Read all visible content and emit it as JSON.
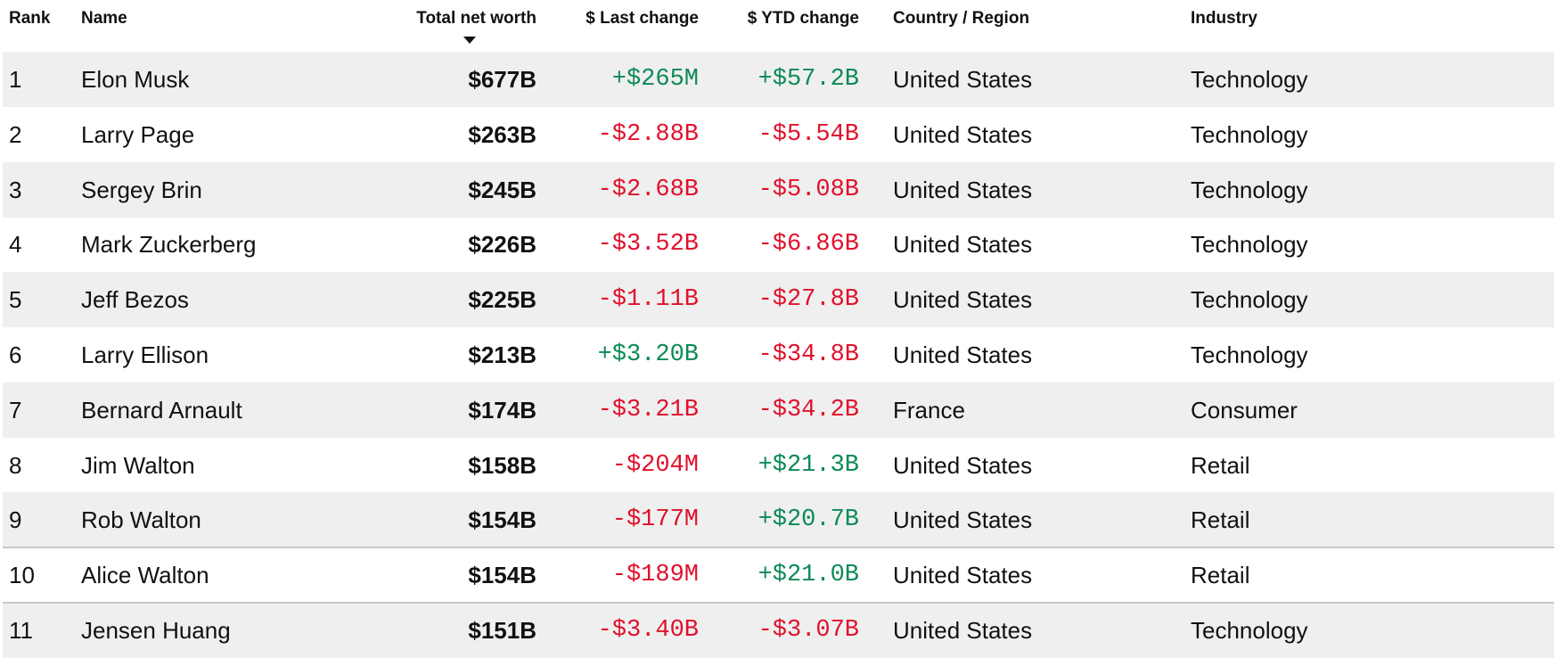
{
  "table": {
    "header": [
      "Rank",
      "Name",
      "Total net worth",
      "$ Last change",
      "$ YTD change",
      "Country / Region",
      "Industry"
    ],
    "rows": [
      [
        "1",
        "Elon Musk",
        "$677B",
        "+$265M",
        "+$57.2B",
        "United States",
        "Technology"
      ],
      [
        "2",
        "Larry Page",
        "$263B",
        "-$2.88B",
        "-$5.54B",
        "United States",
        "Technology"
      ],
      [
        "3",
        "Sergey Brin",
        "$245B",
        "-$2.68B",
        "-$5.08B",
        "United States",
        "Technology"
      ],
      [
        "4",
        "Mark Zuckerberg",
        "$226B",
        "-$3.52B",
        "-$6.86B",
        "United States",
        "Technology"
      ],
      [
        "5",
        "Jeff Bezos",
        "$225B",
        "-$1.11B",
        "-$27.8B",
        "United States",
        "Technology"
      ],
      [
        "6",
        "Larry Ellison",
        "$213B",
        "+$3.20B",
        "-$34.8B",
        "United States",
        "Technology"
      ],
      [
        "7",
        "Bernard Arnault",
        "$174B",
        "-$3.21B",
        "-$34.2B",
        "France",
        "Consumer"
      ],
      [
        "8",
        "Jim Walton",
        "$158B",
        "-$204M",
        "+$21.3B",
        "United States",
        "Retail"
      ],
      [
        "9",
        "Rob Walton",
        "$154B",
        "-$177M",
        "+$20.7B",
        "United States",
        "Retail"
      ],
      [
        "10",
        "Alice Walton",
        "$154B",
        "-$189M",
        "+$21.0B",
        "United States",
        "Retail"
      ],
      [
        "11",
        "Jensen Huang",
        "$151B",
        "-$3.40B",
        "-$3.07B",
        "United States",
        "Technology"
      ]
    ],
    "colors": {
      "up": "#0b8a56",
      "down": "#e0112b"
    }
  }
}
